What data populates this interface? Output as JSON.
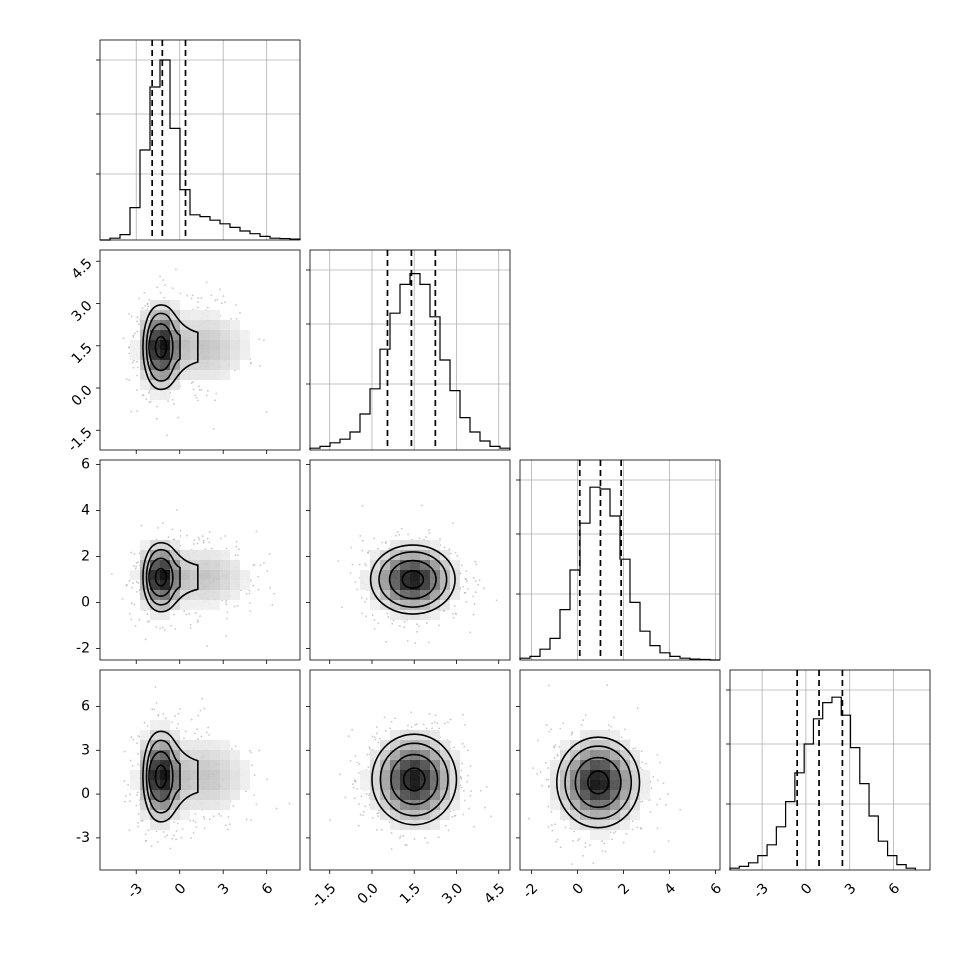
{
  "chart_data": {
    "type": "corner",
    "dimensions": 4,
    "ranges": [
      [
        -5.5,
        8.3
      ],
      [
        -2.2,
        4.9
      ],
      [
        -2.5,
        6.2
      ],
      [
        -5.2,
        8.5
      ]
    ],
    "ticks": [
      [
        "-3",
        "0",
        "3",
        "6"
      ],
      [
        "-1.5",
        "0.0",
        "1.5",
        "3.0",
        "4.5"
      ],
      [
        "-2",
        "0",
        "2",
        "4",
        "6"
      ],
      [
        "-3",
        "0",
        "3",
        "6"
      ]
    ],
    "tick_values": [
      [
        -3,
        0,
        3,
        6
      ],
      [
        -1.5,
        0,
        1.5,
        3,
        4.5
      ],
      [
        -2,
        0,
        2,
        4,
        6
      ],
      [
        -3,
        0,
        3,
        6
      ]
    ],
    "histograms": [
      {
        "quantiles": [
          -1.9,
          -1.2,
          0.4
        ],
        "edges_start": -5.5,
        "bin_width": 0.69,
        "counts": [
          0,
          0.01,
          0.03,
          0.18,
          0.5,
          0.85,
          1.0,
          0.62,
          0.28,
          0.14,
          0.13,
          0.11,
          0.09,
          0.07,
          0.05,
          0.035,
          0.02,
          0.01,
          0.008,
          0.005
        ]
      },
      {
        "quantiles": [
          0.55,
          1.4,
          2.25
        ],
        "edges_start": -2.2,
        "bin_width": 0.355,
        "counts": [
          0.01,
          0.02,
          0.04,
          0.06,
          0.1,
          0.2,
          0.34,
          0.56,
          0.76,
          0.92,
          0.98,
          0.92,
          0.74,
          0.5,
          0.33,
          0.18,
          0.1,
          0.05,
          0.02,
          0.01
        ]
      },
      {
        "quantiles": [
          0.1,
          1.0,
          1.9
        ],
        "edges_start": -2.5,
        "bin_width": 0.435,
        "counts": [
          0.01,
          0.02,
          0.06,
          0.12,
          0.28,
          0.5,
          0.76,
          0.96,
          0.95,
          0.8,
          0.56,
          0.32,
          0.16,
          0.08,
          0.04,
          0.02,
          0.01,
          0.005,
          0.003,
          0.0
        ]
      },
      {
        "quantiles": [
          -0.6,
          0.9,
          2.5
        ],
        "edges_start": -5.2,
        "bin_width": 0.635,
        "counts": [
          0.01,
          0.02,
          0.04,
          0.08,
          0.14,
          0.24,
          0.38,
          0.54,
          0.7,
          0.84,
          0.93,
          0.96,
          0.86,
          0.68,
          0.48,
          0.3,
          0.16,
          0.08,
          0.03,
          0.01
        ]
      }
    ],
    "pair_stats": [
      {
        "i": 1,
        "j": 0,
        "mean": [
          -1.3,
          1.45
        ],
        "sd": [
          0.75,
          0.75
        ],
        "tail": true
      },
      {
        "i": 2,
        "j": 0,
        "mean": [
          -1.3,
          1.1
        ],
        "sd": [
          0.75,
          0.75
        ],
        "tail": true
      },
      {
        "i": 2,
        "j": 1,
        "mean": [
          1.45,
          1.0
        ],
        "sd": [
          0.75,
          0.75
        ],
        "tail": false
      },
      {
        "i": 3,
        "j": 0,
        "mean": [
          -1.3,
          1.2
        ],
        "sd": [
          0.75,
          1.55
        ],
        "tail": true
      },
      {
        "i": 3,
        "j": 1,
        "mean": [
          1.5,
          1.0
        ],
        "sd": [
          0.75,
          1.55
        ],
        "tail": false
      },
      {
        "i": 3,
        "j": 2,
        "mean": [
          0.9,
          0.8
        ],
        "sd": [
          0.9,
          1.55
        ],
        "tail": false
      }
    ]
  }
}
